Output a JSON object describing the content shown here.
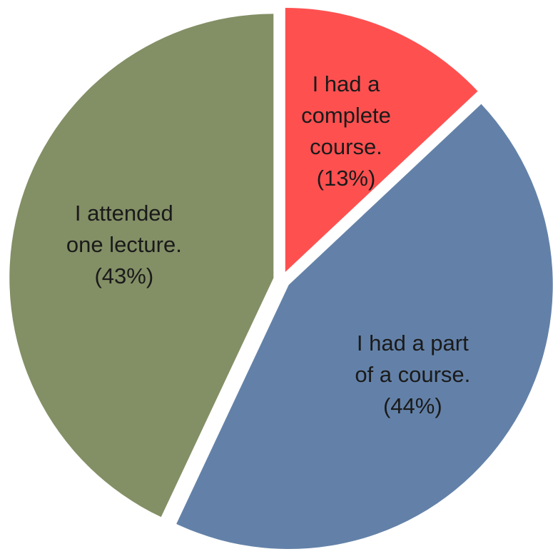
{
  "chart_data": {
    "type": "pie",
    "categories": [
      "I had a complete course.",
      "I had a part of a course.",
      "I attended one lecture."
    ],
    "values": [
      13,
      44,
      43
    ],
    "value_labels": [
      "(13%)",
      "(44%)",
      "(43%)"
    ],
    "colors": [
      "#ff5050",
      "#6381a8",
      "#838f65"
    ]
  }
}
